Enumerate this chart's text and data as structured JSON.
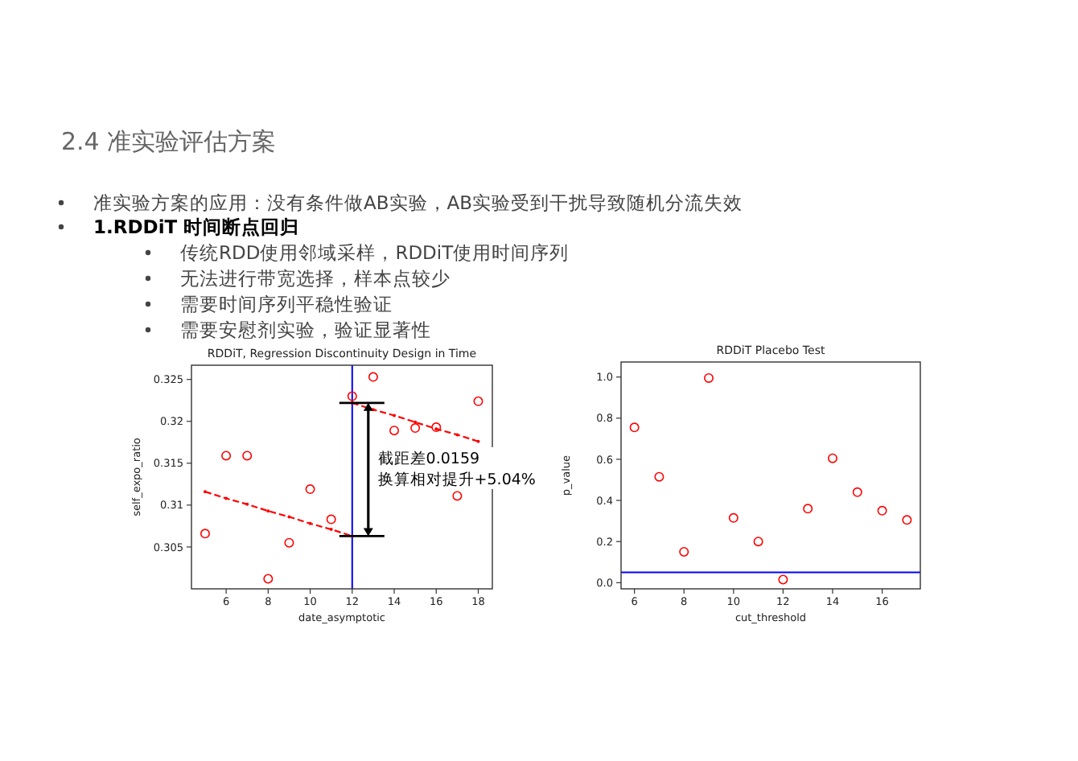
{
  "chart_data": [
    {
      "type": "other",
      "title": "2.4 准实验评估方案",
      "annotations": [
        "准实验方案的应用：没有条件做AB实验，AB实验受到干扰导致随机分流失效",
        "1.RDDiT 时间断点回归",
        "传统RDD使用邻域采样，RDDiT使用时间序列",
        "无法进行带宽选择，样本点较少",
        "需要时间序列平稳性验证",
        "需要安慰剂实验，验证显著性"
      ]
    },
    {
      "type": "scatter",
      "title": "RDDiT, Regression Discontinuity Design in Time",
      "xlabel": "date_asymptotic",
      "ylabel": "self_expo_ratio",
      "xlim": [
        4.35,
        18.67
      ],
      "ylim": [
        0.3,
        0.3267
      ],
      "xticks": [
        6,
        8,
        10,
        12,
        14,
        16,
        18
      ],
      "yticks": [
        0.305,
        0.31,
        0.315,
        0.32,
        0.325
      ],
      "series": [
        {
          "type": "scatter",
          "marker": "circle",
          "color": "#ff0000",
          "x": [
            5,
            6,
            7,
            8,
            9,
            10,
            11,
            12,
            13,
            14,
            15,
            16,
            17,
            18
          ],
          "values": [
            0.3066,
            0.3159,
            0.3159,
            0.3012,
            0.3055,
            0.3119,
            0.3083,
            0.323,
            0.3253,
            0.3189,
            0.3192,
            0.3193,
            0.3111,
            0.3224
          ]
        },
        {
          "type": "line",
          "line_style": "dashed",
          "color": "#ff0000",
          "x": [
            5,
            6,
            7,
            8,
            9,
            10,
            11,
            12
          ],
          "values": [
            0.3116,
            0.3108,
            0.3101,
            0.3093,
            0.3086,
            0.3078,
            0.3071,
            0.3063
          ]
        },
        {
          "type": "line",
          "line_style": "dashed",
          "color": "#ff0000",
          "x": [
            12,
            13,
            14,
            15,
            16,
            17,
            18
          ],
          "values": [
            0.3222,
            0.3214,
            0.3207,
            0.3199,
            0.3191,
            0.3184,
            0.3176
          ]
        }
      ],
      "ref_lines": [
        {
          "axis": "x",
          "value": 12,
          "color": "#0000ff"
        }
      ],
      "annotations": [
        "截距差0.0159\n换算相对提升+5.04%"
      ]
    },
    {
      "type": "scatter",
      "title": "RDDiT Placebo Test",
      "xlabel": "cut_threshold",
      "ylabel": "p_value",
      "xlim": [
        5.46,
        17.54
      ],
      "ylim": [
        -0.03,
        1.073
      ],
      "xticks": [
        6,
        8,
        10,
        12,
        14,
        16
      ],
      "yticks": [
        {
          "value": 0,
          "label": "0.0"
        },
        0.2,
        0.4,
        0.6,
        0.8,
        {
          "value": 1,
          "label": "1.0"
        }
      ],
      "series": [
        {
          "type": "scatter",
          "marker": "circle",
          "color": "#ff0000",
          "x": [
            6,
            7,
            8,
            9,
            10,
            11,
            12,
            13,
            14,
            15,
            16,
            17
          ],
          "values": [
            0.755,
            0.515,
            0.15,
            0.995,
            0.315,
            0.2,
            0.015,
            0.36,
            0.605,
            0.44,
            0.35,
            0.305
          ]
        }
      ],
      "ref_lines": [
        {
          "axis": "y",
          "value": 0.05,
          "color": "#0000ff"
        }
      ]
    }
  ]
}
